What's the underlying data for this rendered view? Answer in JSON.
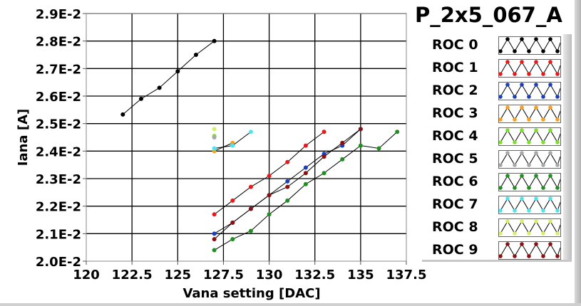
{
  "title": "P_2x5_067_A",
  "chart_data": {
    "type": "line",
    "title": "P_2x5_067_A",
    "xlabel": "Vana setting [DAC]",
    "ylabel": "Iana [A]",
    "xlim": [
      120,
      137.5
    ],
    "ylim": [
      0.02,
      0.029
    ],
    "grid": true,
    "legend_placement": "right",
    "x_ticks": [
      "120",
      "122.5",
      "125",
      "127.5",
      "130",
      "132.5",
      "135",
      "137.5"
    ],
    "x_tick_values": [
      120,
      122.5,
      125,
      127.5,
      130,
      132.5,
      135,
      137.5
    ],
    "y_ticks": [
      "2.0E-2",
      "2.1E-2",
      "2.2E-2",
      "2.3E-2",
      "2.4E-2",
      "2.5E-2",
      "2.6E-2",
      "2.7E-2",
      "2.8E-2",
      "2.9E-2"
    ],
    "y_tick_values": [
      0.02,
      0.021,
      0.022,
      0.023,
      0.024,
      0.025,
      0.026,
      0.027,
      0.028,
      0.029
    ],
    "series": [
      {
        "name": "ROC 0",
        "color": "#000000",
        "x": [
          122,
          123,
          124,
          125,
          126,
          127
        ],
        "y": [
          0.02533,
          0.0259,
          0.0263,
          0.0269,
          0.0275,
          0.028
        ]
      },
      {
        "name": "ROC 1",
        "color": "#e8191b",
        "x": [
          127,
          128,
          129,
          130,
          131,
          132,
          133
        ],
        "y": [
          0.0217,
          0.0222,
          0.0227,
          0.0231,
          0.0236,
          0.0242,
          0.0247
        ]
      },
      {
        "name": "ROC 2",
        "color": "#1a3fb8",
        "x": [
          127,
          128,
          129,
          130,
          131,
          132,
          133,
          134,
          135
        ],
        "y": [
          0.021,
          0.0214,
          0.0219,
          0.0224,
          0.0229,
          0.0234,
          0.0239,
          0.0242,
          0.0248
        ]
      },
      {
        "name": "ROC 3",
        "color": "#f5a01f",
        "x": [
          127,
          128
        ],
        "y": [
          0.024,
          0.0243
        ]
      },
      {
        "name": "ROC 4",
        "color": "#7fe02a",
        "x": [
          127
        ],
        "y": [
          0.02455
        ]
      },
      {
        "name": "ROC 5",
        "color": "#a8a8a8",
        "x": [
          127
        ],
        "y": [
          0.0245
        ]
      },
      {
        "name": "ROC 6",
        "color": "#1f8f1f",
        "x": [
          127,
          128,
          129,
          130,
          131,
          132,
          133,
          134,
          135,
          136,
          137
        ],
        "y": [
          0.0204,
          0.0208,
          0.0211,
          0.0217,
          0.0222,
          0.0228,
          0.0232,
          0.0237,
          0.0242,
          0.0241,
          0.0247
        ]
      },
      {
        "name": "ROC 7",
        "color": "#4ee6ec",
        "x": [
          127,
          128,
          129
        ],
        "y": [
          0.0241,
          0.0242,
          0.0247
        ]
      },
      {
        "name": "ROC 8",
        "color": "#d4f06a",
        "x": [
          127
        ],
        "y": [
          0.0248
        ]
      },
      {
        "name": "ROC 9",
        "color": "#8b1010",
        "x": [
          127,
          128,
          129,
          130,
          131,
          132,
          133,
          134,
          135
        ],
        "y": [
          0.0208,
          0.0214,
          0.0219,
          0.0224,
          0.0227,
          0.0232,
          0.0238,
          0.0243,
          0.0248
        ]
      }
    ]
  }
}
